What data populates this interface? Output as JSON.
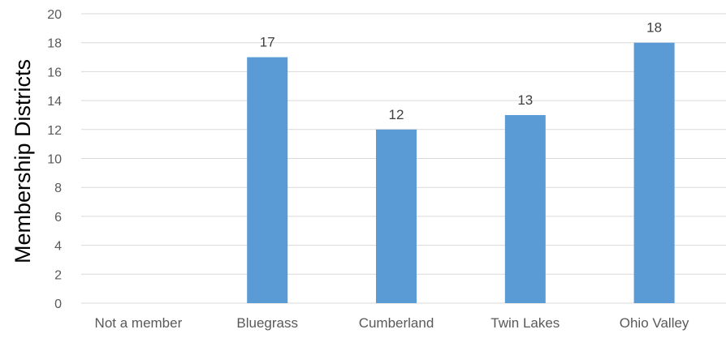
{
  "chart_data": {
    "type": "bar",
    "title": "",
    "xlabel": "",
    "ylabel": "Membership Districts",
    "categories": [
      "Not  a member",
      "Bluegrass",
      "Cumberland",
      "Twin Lakes",
      "Ohio Valley"
    ],
    "values": [
      0,
      17,
      12,
      13,
      18
    ],
    "data_labels": [
      "",
      "17",
      "12",
      "13",
      "18"
    ],
    "ylim": [
      0,
      20
    ],
    "yticks": [
      0,
      2,
      4,
      6,
      8,
      10,
      12,
      14,
      16,
      18,
      20
    ],
    "grid": true,
    "legend": "none",
    "bar_color": "#5b9bd5"
  }
}
